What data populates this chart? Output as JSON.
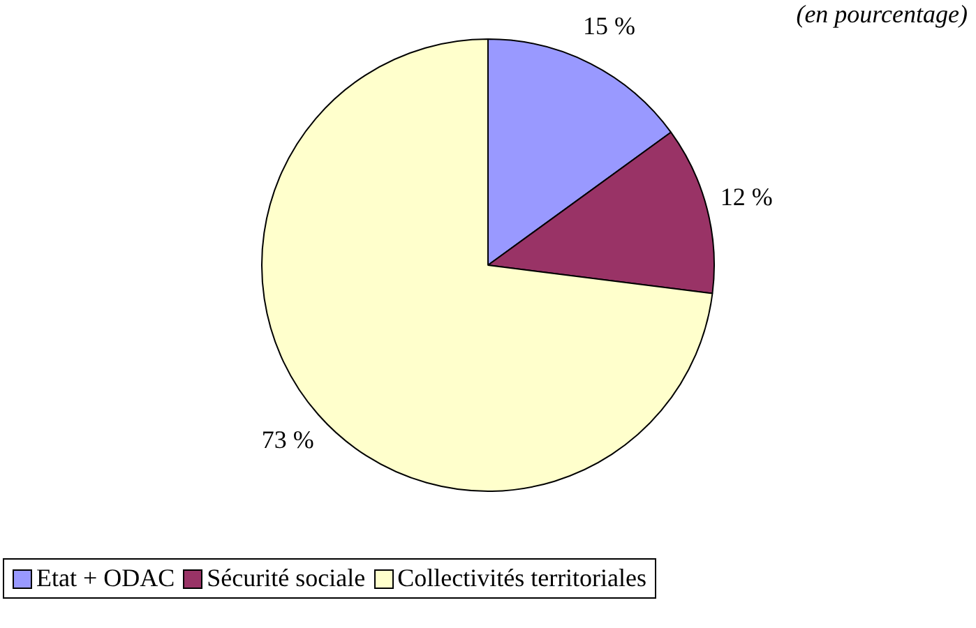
{
  "chart_data": {
    "type": "pie",
    "subtitle": "(en pourcentage)",
    "categories": [
      "Etat + ODAC",
      "Sécurité sociale",
      "Collectivités territoriales"
    ],
    "values": [
      15,
      12,
      73
    ],
    "colors": [
      "#9999ff",
      "#993366",
      "#ffffcc"
    ],
    "value_labels": [
      "15 %",
      "12 %",
      "73 %"
    ],
    "legend": "bottom left"
  }
}
